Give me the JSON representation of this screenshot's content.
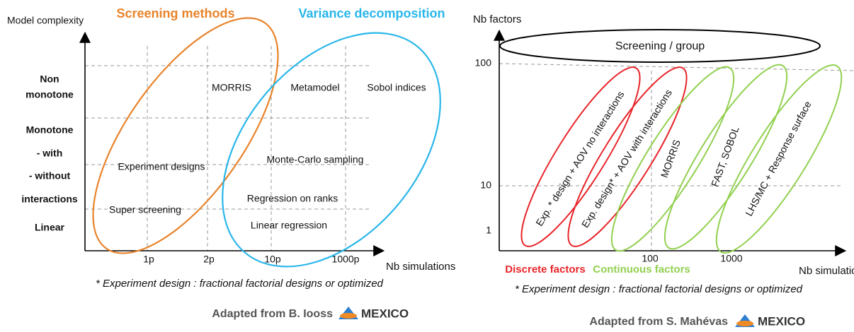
{
  "left": {
    "y_axis_label": "Model complexity",
    "x_axis_label": "Nb simulations",
    "groups": [
      "Screening methods",
      "Variance decomposition"
    ],
    "y_labels": [
      "Non",
      "monotone",
      "Monotone",
      "- with",
      "- without",
      "interactions",
      "Linear"
    ],
    "x_labels": [
      "1p",
      "2p",
      "10p",
      "1000p"
    ],
    "regions": [
      "MORRIS",
      "Metamodel",
      "Sobol indices",
      "Experiment designs",
      "Monte-Carlo sampling",
      "Regression on ranks",
      "Super screening",
      "Linear regression"
    ],
    "footnote": "* Experiment design : fractional factorial designs or optimized",
    "credit": "Adapted from B. Iooss",
    "logo": "MEXICO"
  },
  "right": {
    "y_axis_label": "Nb factors",
    "x_axis_label": "Nb simulations",
    "y_labels": [
      "100",
      "10",
      "1"
    ],
    "x_labels": [
      "100",
      "1000"
    ],
    "top_group": "Screening / group",
    "methods": [
      "Exp. * design + AOV no interactions",
      "Exp. design* + AOV with interactions",
      "MORRIS",
      "FAST, SOBOL",
      "LHS/MC + Response surface"
    ],
    "legend": [
      "Discrete factors",
      "Continuous factors"
    ],
    "footnote": "* Experiment design : fractional factorial designs or optimized",
    "credit": "Adapted from S. Mahévas",
    "logo": "MEXICO"
  }
}
